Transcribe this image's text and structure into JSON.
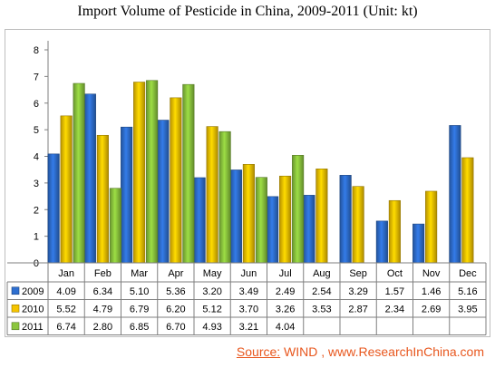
{
  "title": "Import Volume of Pesticide in China, 2009-2011 (Unit: kt)",
  "source": {
    "label": "Source:",
    "text": " WIND , www.ResearchInChina.com"
  },
  "chart_data": {
    "type": "bar",
    "title": "Import Volume of Pesticide in China, 2009-2011 (Unit: kt)",
    "categories": [
      "Jan",
      "Feb",
      "Mar",
      "Apr",
      "May",
      "Jun",
      "Jul",
      "Aug",
      "Sep",
      "Oct",
      "Nov",
      "Dec"
    ],
    "yticks": [
      "0",
      "1",
      "2",
      "3",
      "4",
      "5",
      "6",
      "7",
      "8"
    ],
    "ylim": [
      0,
      8
    ],
    "grid": false,
    "legend": "data-table-left",
    "series": [
      {
        "name": "2009",
        "color": "#2e6fd0",
        "values": [
          4.09,
          6.34,
          5.1,
          5.36,
          3.2,
          3.49,
          2.49,
          2.54,
          3.29,
          1.57,
          1.46,
          5.16
        ],
        "labels": [
          "4.09",
          "6.34",
          "5.10",
          "5.36",
          "3.20",
          "3.49",
          "2.49",
          "2.54",
          "3.29",
          "1.57",
          "1.46",
          "5.16"
        ]
      },
      {
        "name": "2010",
        "color": "#f5c400",
        "values": [
          5.52,
          4.79,
          6.79,
          6.2,
          5.12,
          3.7,
          3.26,
          3.53,
          2.87,
          2.34,
          2.69,
          3.95
        ],
        "labels": [
          "5.52",
          "4.79",
          "6.79",
          "6.20",
          "5.12",
          "3.70",
          "3.26",
          "3.53",
          "2.87",
          "2.34",
          "2.69",
          "3.95"
        ]
      },
      {
        "name": "2011",
        "color": "#8cc63e",
        "values": [
          6.74,
          2.8,
          6.85,
          6.7,
          4.93,
          3.21,
          4.04,
          null,
          null,
          null,
          null,
          null
        ],
        "labels": [
          "6.74",
          "2.80",
          "6.85",
          "6.70",
          "4.93",
          "3.21",
          "4.04",
          "",
          "",
          "",
          "",
          ""
        ]
      }
    ]
  }
}
